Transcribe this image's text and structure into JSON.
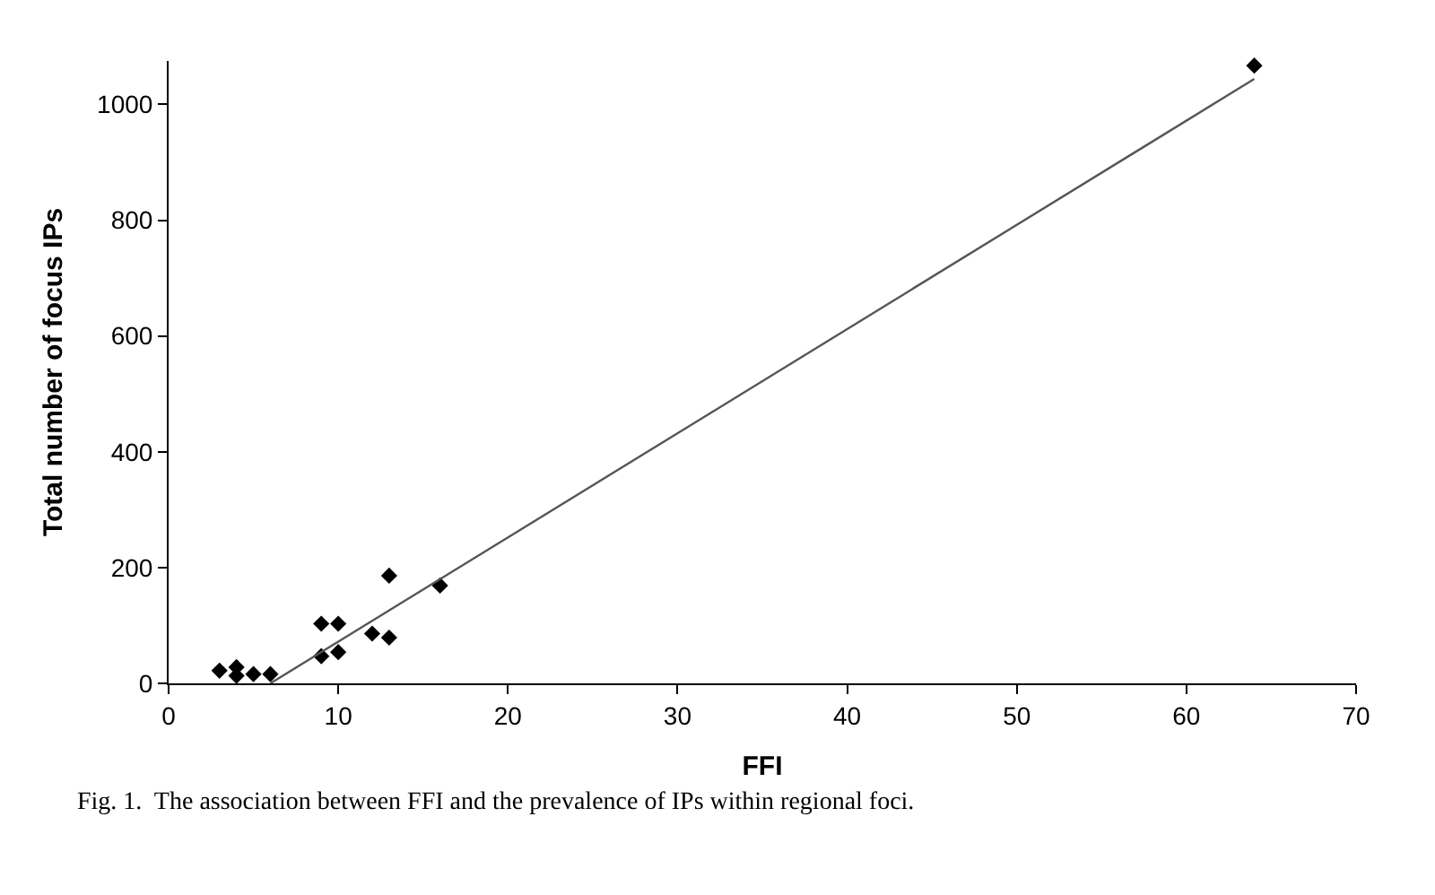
{
  "chart_data": {
    "type": "scatter",
    "xlabel": "FFI",
    "ylabel": "Total number of focus IPs",
    "annotations": [
      "Fig. 1.  The association between FFI and the prevalence of IPs within regional foci."
    ],
    "xlim": [
      0,
      70
    ],
    "xticks": [
      0,
      10,
      20,
      30,
      40,
      50,
      60,
      70
    ],
    "ylim": [
      0,
      1075
    ],
    "yticks": [
      0,
      200,
      400,
      600,
      800,
      1000
    ],
    "marker": "diamond",
    "series": [
      {
        "color": "#000000",
        "x": [
          3,
          4,
          4,
          5,
          6,
          9,
          9,
          10,
          10,
          12,
          13,
          13,
          16,
          64
        ],
        "values": [
          22,
          28,
          13,
          16,
          16,
          103,
          47,
          103,
          54,
          86,
          186,
          79,
          169,
          1067
        ]
      },
      {
        "type": "line",
        "color": "#555555",
        "x": [
          6,
          64
        ],
        "values": [
          0,
          1044
        ],
        "line_style": "solid",
        "marker": "none"
      }
    ]
  }
}
